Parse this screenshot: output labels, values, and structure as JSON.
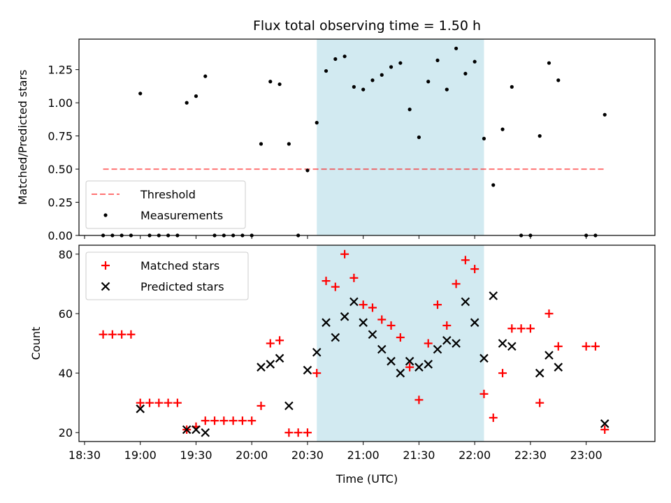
{
  "chart_data": {
    "title": "Flux total observing time = 1.50 h",
    "xlabel": "Time (UTC)",
    "x_ticks": [
      "18:30",
      "19:00",
      "19:30",
      "20:00",
      "20:30",
      "21:00",
      "21:30",
      "22:00",
      "22:30",
      "23:00"
    ],
    "x_range": [
      "18:27",
      "23:37"
    ],
    "highlight": {
      "start": "20:35",
      "end": "22:05",
      "color": "#add8e6"
    },
    "panels": [
      {
        "type": "scatter",
        "ylabel": "Matched/Predicted stars",
        "ylim": [
          0,
          1.48
        ],
        "yticks": [
          "0.00",
          "0.25",
          "0.50",
          "0.75",
          "1.00",
          "1.25"
        ],
        "legend_position": "lower-left",
        "threshold": {
          "name": "Threshold",
          "value": 0.5,
          "x_start": "18:40",
          "x_end": "23:10",
          "color": "#ff0000",
          "style": "dashed"
        },
        "series": [
          {
            "name": "Measurements",
            "color": "#000000",
            "x": [
              "18:40",
              "18:45",
              "18:50",
              "18:55",
              "19:00",
              "19:05",
              "19:10",
              "19:15",
              "19:20",
              "19:25",
              "19:30",
              "19:35",
              "19:40",
              "19:45",
              "19:50",
              "19:55",
              "20:00",
              "20:05",
              "20:10",
              "20:15",
              "20:20",
              "20:25",
              "20:30",
              "20:35",
              "20:40",
              "20:45",
              "20:50",
              "20:55",
              "21:00",
              "21:05",
              "21:10",
              "21:15",
              "21:20",
              "21:25",
              "21:30",
              "21:35",
              "21:40",
              "21:45",
              "21:50",
              "21:55",
              "22:00",
              "22:05",
              "22:10",
              "22:15",
              "22:20",
              "22:25",
              "22:30",
              "22:35",
              "22:40",
              "22:45",
              "23:00",
              "23:05",
              "23:10"
            ],
            "y": [
              0,
              0,
              0,
              0,
              1.07,
              0,
              0,
              0,
              0,
              1.0,
              1.05,
              1.2,
              0,
              0,
              0,
              0,
              0,
              0.69,
              1.16,
              1.14,
              0.69,
              0,
              0.49,
              0.85,
              1.24,
              1.33,
              1.35,
              1.12,
              1.1,
              1.17,
              1.21,
              1.27,
              1.3,
              0.95,
              0.74,
              1.16,
              1.32,
              1.1,
              1.41,
              1.22,
              1.31,
              0.73,
              0.38,
              0.8,
              1.12,
              0,
              0,
              0.75,
              1.3,
              1.17,
              0,
              0,
              0.91
            ]
          }
        ]
      },
      {
        "type": "scatter",
        "ylabel": "Count",
        "ylim": [
          17,
          83
        ],
        "yticks": [
          "20",
          "40",
          "60",
          "80"
        ],
        "legend_position": "top-left",
        "series": [
          {
            "name": "Matched stars",
            "marker": "+",
            "color": "#ff0000",
            "x": [
              "18:40",
              "18:45",
              "18:50",
              "18:55",
              "19:00",
              "19:05",
              "19:10",
              "19:15",
              "19:20",
              "19:25",
              "19:30",
              "19:35",
              "19:40",
              "19:45",
              "19:50",
              "19:55",
              "20:00",
              "20:05",
              "20:10",
              "20:15",
              "20:20",
              "20:25",
              "20:30",
              "20:35",
              "20:40",
              "20:45",
              "20:50",
              "20:55",
              "21:00",
              "21:05",
              "21:10",
              "21:15",
              "21:20",
              "21:25",
              "21:30",
              "21:35",
              "21:40",
              "21:45",
              "21:50",
              "21:55",
              "22:00",
              "22:05",
              "22:10",
              "22:15",
              "22:20",
              "22:25",
              "22:30",
              "22:35",
              "22:40",
              "22:45",
              "23:00",
              "23:05",
              "23:10"
            ],
            "y": [
              53,
              53,
              53,
              53,
              30,
              30,
              30,
              30,
              30,
              21,
              22,
              24,
              24,
              24,
              24,
              24,
              24,
              29,
              50,
              51,
              20,
              20,
              20,
              40,
              71,
              69,
              80,
              72,
              63,
              62,
              58,
              56,
              52,
              42,
              31,
              50,
              63,
              56,
              70,
              78,
              75,
              33,
              25,
              40,
              55,
              55,
              55,
              30,
              60,
              49,
              49,
              49,
              21
            ]
          },
          {
            "name": "Predicted stars",
            "marker": "x",
            "color": "#000000",
            "x": [
              "19:00",
              "19:25",
              "19:30",
              "19:35",
              "20:05",
              "20:10",
              "20:15",
              "20:20",
              "20:30",
              "20:35",
              "20:40",
              "20:45",
              "20:50",
              "20:55",
              "21:00",
              "21:05",
              "21:10",
              "21:15",
              "21:20",
              "21:25",
              "21:30",
              "21:35",
              "21:40",
              "21:45",
              "21:50",
              "21:55",
              "22:00",
              "22:05",
              "22:10",
              "22:15",
              "22:20",
              "22:35",
              "22:40",
              "22:45",
              "23:10"
            ],
            "y": [
              28,
              21,
              21,
              20,
              42,
              43,
              45,
              29,
              41,
              47,
              57,
              52,
              59,
              64,
              57,
              53,
              48,
              44,
              40,
              44,
              42,
              43,
              48,
              51,
              50,
              64,
              57,
              45,
              66,
              50,
              49,
              40,
              46,
              42,
              23
            ]
          }
        ]
      }
    ]
  }
}
